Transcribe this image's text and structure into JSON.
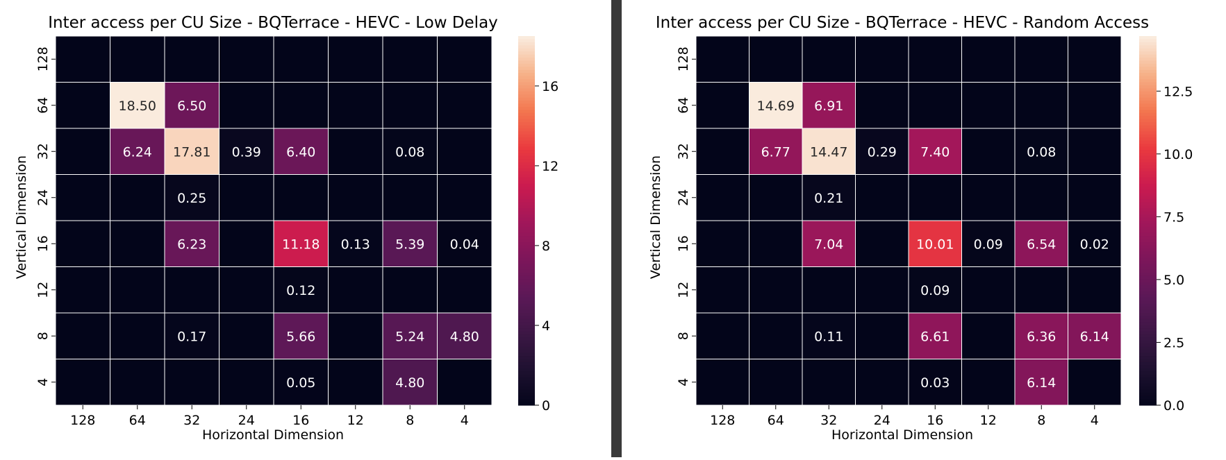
{
  "chart_data": [
    {
      "type": "heatmap",
      "title": "Inter access per CU Size - BQTerrace - HEVC - Low Delay",
      "xlabel": "Horizontal Dimension",
      "ylabel": "Vertical Dimension",
      "x_categories": [
        "128",
        "64",
        "32",
        "24",
        "16",
        "12",
        "8",
        "4"
      ],
      "y_categories": [
        "128",
        "64",
        "32",
        "24",
        "16",
        "12",
        "8",
        "4"
      ],
      "values": [
        [
          0,
          0,
          0,
          0,
          0,
          0,
          0,
          0
        ],
        [
          0,
          18.5,
          6.5,
          0,
          0,
          0,
          0,
          0
        ],
        [
          0,
          6.24,
          17.81,
          0.39,
          6.4,
          0,
          0.08,
          0
        ],
        [
          0,
          0,
          0.25,
          0,
          0,
          0,
          0,
          0
        ],
        [
          0,
          0,
          6.23,
          0,
          11.18,
          0.13,
          5.39,
          0.04
        ],
        [
          0,
          0,
          0,
          0,
          0.12,
          0,
          0,
          0
        ],
        [
          0,
          0,
          0.17,
          0,
          5.66,
          0,
          5.24,
          4.8
        ],
        [
          0,
          0,
          0,
          0,
          0.05,
          0,
          4.8,
          0
        ]
      ],
      "annotated": [
        [
          false,
          false,
          false,
          false,
          false,
          false,
          false,
          false
        ],
        [
          false,
          true,
          true,
          false,
          false,
          false,
          false,
          false
        ],
        [
          false,
          true,
          true,
          true,
          true,
          false,
          true,
          false
        ],
        [
          false,
          false,
          true,
          false,
          false,
          false,
          false,
          false
        ],
        [
          false,
          false,
          true,
          false,
          true,
          true,
          true,
          true
        ],
        [
          false,
          false,
          false,
          false,
          true,
          false,
          false,
          false
        ],
        [
          false,
          false,
          true,
          false,
          true,
          false,
          true,
          true
        ],
        [
          false,
          false,
          false,
          false,
          true,
          false,
          true,
          false
        ]
      ],
      "colorbar_ticks": [
        "0",
        "4",
        "8",
        "12",
        "16"
      ],
      "colorbar_tick_values": [
        0,
        4,
        8,
        12,
        16
      ],
      "vmin": 0,
      "vmax": 18.5,
      "colormap": "rocket",
      "grid": true,
      "grid_color": "#ffffff"
    },
    {
      "type": "heatmap",
      "title": "Inter access per CU Size - BQTerrace - HEVC - Random Access",
      "xlabel": "Horizontal Dimension",
      "ylabel": "Vertical Dimension",
      "x_categories": [
        "128",
        "64",
        "32",
        "24",
        "16",
        "12",
        "8",
        "4"
      ],
      "y_categories": [
        "128",
        "64",
        "32",
        "24",
        "16",
        "12",
        "8",
        "4"
      ],
      "values": [
        [
          0,
          0,
          0,
          0,
          0,
          0,
          0,
          0
        ],
        [
          0,
          14.69,
          6.91,
          0,
          0,
          0,
          0,
          0
        ],
        [
          0,
          6.77,
          14.47,
          0.29,
          7.4,
          0,
          0.08,
          0
        ],
        [
          0,
          0,
          0.21,
          0,
          0,
          0,
          0,
          0
        ],
        [
          0,
          0,
          7.04,
          0,
          10.01,
          0.09,
          6.54,
          0.02
        ],
        [
          0,
          0,
          0,
          0,
          0.09,
          0,
          0,
          0
        ],
        [
          0,
          0,
          0.11,
          0,
          6.61,
          0,
          6.36,
          6.14
        ],
        [
          0,
          0,
          0,
          0,
          0.03,
          0,
          6.14,
          0
        ]
      ],
      "annotated": [
        [
          false,
          false,
          false,
          false,
          false,
          false,
          false,
          false
        ],
        [
          false,
          true,
          true,
          false,
          false,
          false,
          false,
          false
        ],
        [
          false,
          true,
          true,
          true,
          true,
          false,
          true,
          false
        ],
        [
          false,
          false,
          true,
          false,
          false,
          false,
          false,
          false
        ],
        [
          false,
          false,
          true,
          false,
          true,
          true,
          true,
          true
        ],
        [
          false,
          false,
          false,
          false,
          true,
          false,
          false,
          false
        ],
        [
          false,
          false,
          true,
          false,
          true,
          false,
          true,
          true
        ],
        [
          false,
          false,
          false,
          false,
          true,
          false,
          true,
          false
        ]
      ],
      "colorbar_ticks": [
        "0.0",
        "2.5",
        "5.0",
        "7.5",
        "10.0",
        "12.5"
      ],
      "colorbar_tick_values": [
        0,
        2.5,
        5,
        7.5,
        10,
        12.5
      ],
      "vmin": 0,
      "vmax": 14.69,
      "colormap": "rocket",
      "grid": true,
      "grid_color": "#ffffff"
    }
  ],
  "divider_color": "#3a3a3a"
}
